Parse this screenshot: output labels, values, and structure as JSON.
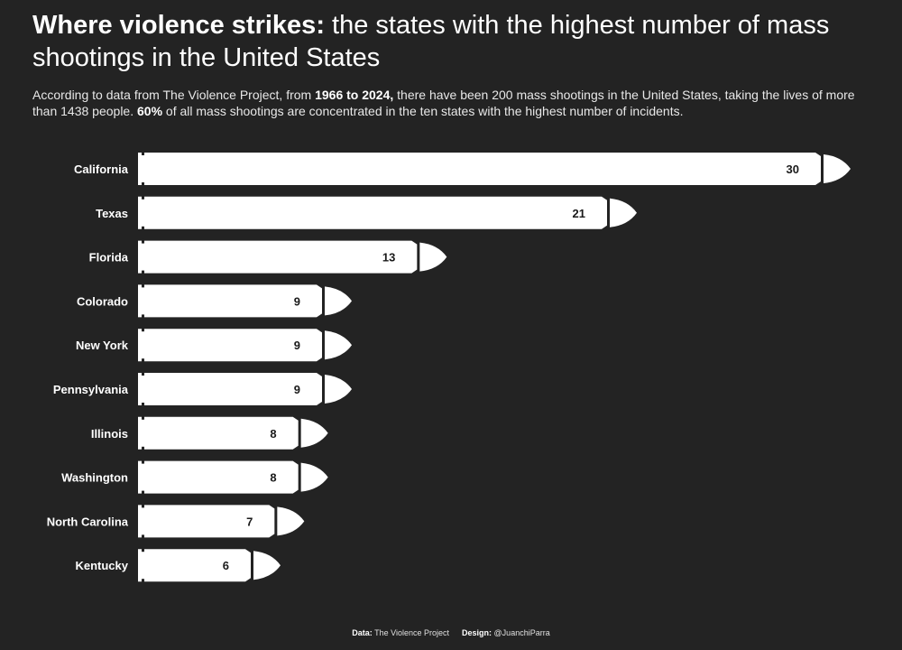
{
  "header": {
    "title_bold": "Where violence strikes:",
    "title_rest": " the states with the highest number of mass shootings in the United States",
    "subtitle_parts": [
      {
        "text": "According to data from The Violence Project, from ",
        "bold": false
      },
      {
        "text": "1966 to 2024,",
        "bold": true
      },
      {
        "text": " there have been 200 mass shootings in the United States, taking the lives of more than 1438 people. ",
        "bold": false
      },
      {
        "text": "60%",
        "bold": true
      },
      {
        "text": " of all mass shootings are concentrated in the ten states with the highest number of incidents.",
        "bold": false
      }
    ]
  },
  "colors": {
    "background": "#232323",
    "bar": "#ffffff",
    "separator": "#232323",
    "value_text": "#1a1a1a",
    "label_text": "#ffffff"
  },
  "chart_data": {
    "type": "bar",
    "orientation": "horizontal",
    "bar_style": "bullet",
    "categories": [
      "California",
      "Texas",
      "Florida",
      "Colorado",
      "New York",
      "Pennsylvania",
      "Illinois",
      "Washington",
      "North Carolina",
      "Kentucky"
    ],
    "values": [
      30,
      21,
      13,
      9,
      9,
      9,
      8,
      8,
      7,
      6
    ],
    "xlim": [
      0,
      30
    ],
    "grid": false,
    "legend": "none"
  },
  "footer": {
    "data_label": "Data:",
    "data_value": "The Violence Project",
    "design_label": "Design:",
    "design_value": "@JuanchiParra"
  }
}
